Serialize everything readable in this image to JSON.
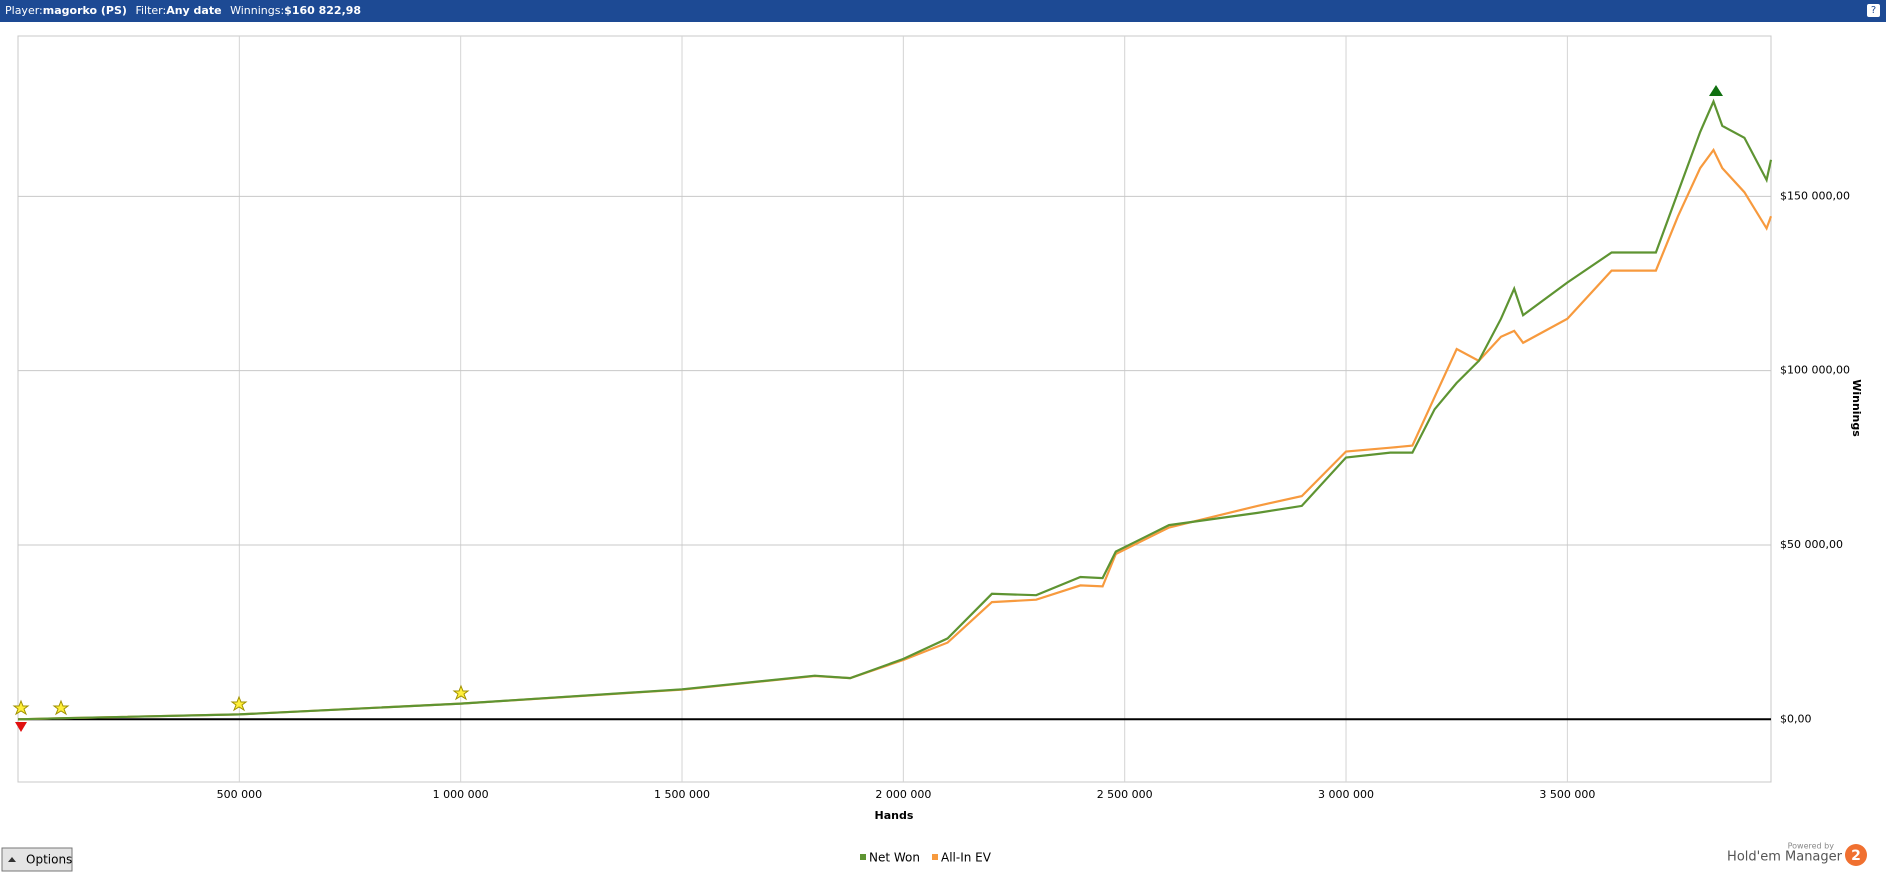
{
  "header": {
    "player_label": "Player:",
    "player": "magorko (PS)",
    "filter_label": "Filter:",
    "filter": "Any date",
    "winnings_label": "Winnings:",
    "winnings": "$160 822,98",
    "help": "?"
  },
  "chart_data": {
    "type": "line",
    "x_label": "Hands",
    "y_label": "Winnings",
    "x": [
      0,
      100000,
      500000,
      1000000,
      1500000,
      1800000,
      1880000,
      2000000,
      2100000,
      2200000,
      2300000,
      2400000,
      2450000,
      2480000,
      2600000,
      2800000,
      2900000,
      3000000,
      3100000,
      3150000,
      3200000,
      3250000,
      3300000,
      3350000,
      3380000,
      3400000,
      3500000,
      3600000,
      3700000,
      3750000,
      3800000,
      3830000,
      3850000,
      3900000,
      3950000,
      3960000
    ],
    "series": [
      {
        "name": "All-In EV",
        "color": "#f79a3e",
        "values": [
          0,
          300,
          1400,
          4500,
          8500,
          12400,
          11800,
          17000,
          22000,
          33600,
          34300,
          38400,
          38100,
          47400,
          55000,
          61200,
          64000,
          76800,
          77900,
          78500,
          92400,
          106200,
          102800,
          109700,
          111400,
          108000,
          114900,
          128700,
          128700,
          144300,
          158100,
          163300,
          158100,
          151200,
          140800,
          144300
        ]
      },
      {
        "name": "Net Won",
        "color": "#5e9432",
        "values": [
          0,
          300,
          1400,
          4500,
          8600,
          12500,
          11800,
          17300,
          23200,
          36000,
          35600,
          40800,
          40500,
          48100,
          55700,
          59200,
          61200,
          75100,
          76500,
          76500,
          88900,
          96500,
          102800,
          114900,
          123500,
          115900,
          125300,
          133900,
          133900,
          151200,
          168500,
          177200,
          170200,
          166800,
          154700,
          160500
        ]
      }
    ],
    "xlim": [
      0,
      3960000
    ],
    "ylim": [
      -18000,
      196000
    ],
    "xticks": [
      {
        "value": 500000,
        "label": "500 000"
      },
      {
        "value": 1000000,
        "label": "1 000 000"
      },
      {
        "value": 1500000,
        "label": "1 500 000"
      },
      {
        "value": 2000000,
        "label": "2 000 000"
      },
      {
        "value": 2500000,
        "label": "2 500 000"
      },
      {
        "value": 3000000,
        "label": "3 000 000"
      },
      {
        "value": 3500000,
        "label": "3 500 000"
      }
    ],
    "yticks": [
      {
        "value": 0,
        "label": "$0,00"
      },
      {
        "value": 50000,
        "label": "$50 000,00"
      },
      {
        "value": 100000,
        "label": "$100 000,00"
      },
      {
        "value": 150000,
        "label": "$150 000,00"
      }
    ],
    "grid": true,
    "legend": "bottom"
  },
  "footer": {
    "options": "Options",
    "powered": "Powered by",
    "brand": "Hold'em Manager",
    "brand_number": "2"
  }
}
